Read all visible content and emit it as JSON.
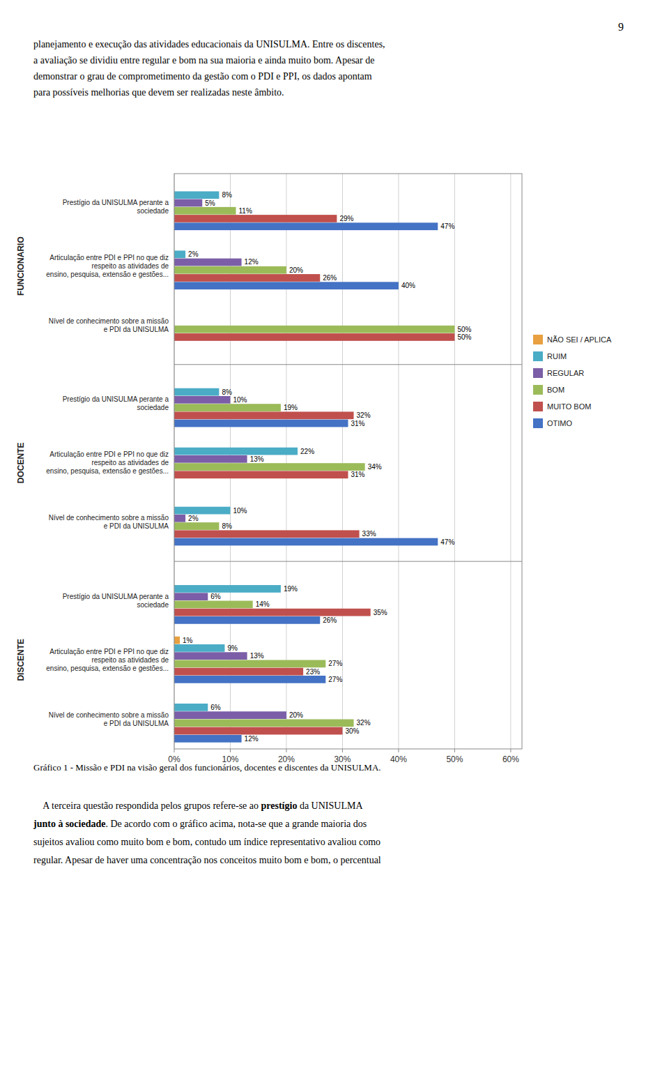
{
  "page_number": "9",
  "header_lines": [
    "planejamento e execução das atividades educacionais da UNISULMA. Entre os discentes,",
    "a avaliação se dividiu entre regular e bom na sua maioria e ainda muito bom. Apesar de",
    "demonstrar o grau de comprometimento da gestão com o PDI e PPI, os dados apontam",
    "para possíveis melhorias que devem ser realizadas neste âmbito."
  ],
  "caption": "Gráfico 1 - Missão e PDI na visão geral dos funcionários, docentes e discentes da UNISULMA.",
  "footer": [
    [
      {
        "text": "    A terceira questão respondida pelos grupos refere-se ao ",
        "bold": false
      },
      {
        "text": "prestígio",
        "bold": true
      },
      {
        "text": " da UNISULMA",
        "bold": false
      }
    ],
    [
      {
        "text": "junto à sociedade",
        "bold": true
      },
      {
        "text": ". De acordo com o gráfico acima, nota-se que a grande maioria dos",
        "bold": false
      }
    ],
    [
      {
        "text": "sujeitos avaliou como muito bom e bom, contudo um índice representativo avaliou como",
        "bold": false
      }
    ],
    [
      {
        "text": "regular. Apesar de haver uma concentração nos conceitos muito bom e bom, o percentual",
        "bold": false
      }
    ]
  ],
  "chart_data": {
    "type": "bar",
    "orientation": "horizontal",
    "categories": [
      "Prestígio da UNISULMA perante a\nsociedade",
      "Articulação entre PDI e PPI no que diz\nrespeito as atividades de\nensino, pesquisa, extensão e gestões...",
      "Nível de conhecimento sobre a missão\ne PDI da UNISULMA",
      "Prestígio da UNISULMA perante a\nsociedade",
      "Articulação entre PDI e PPI no que diz\nrespeito as atividades de\nensino, pesquisa, extensão e gestões...",
      "Nível de conhecimento sobre a missão\ne PDI da UNISULMA",
      "Prestígio da UNISULMA perante a\nsociedade",
      "Articulação entre PDI e PPI no que diz\nrespeito as atividades de\nensino, pesquisa, extensão e gestões...",
      "Nível de conhecimento sobre a missão\ne PDI da UNISULMA"
    ],
    "groups": [
      "FUNCIONARIO",
      "DOCENTE",
      "DISCENTE"
    ],
    "group_spans": [
      [
        0,
        2
      ],
      [
        3,
        5
      ],
      [
        6,
        8
      ]
    ],
    "series": [
      {
        "name": "NÃO SEI / APLICA",
        "color": "#E8A040",
        "values": [
          0,
          0,
          0,
          0,
          0,
          0,
          0,
          1,
          0
        ],
        "value_labels": [
          null,
          null,
          null,
          null,
          null,
          null,
          null,
          "1%",
          null
        ]
      },
      {
        "name": "RUIM",
        "color": "#4BACC6",
        "values": [
          8,
          2,
          0,
          8,
          22,
          10,
          19,
          9,
          6
        ],
        "value_labels": [
          "8%",
          "2%",
          null,
          "8%",
          "22%",
          "10%",
          "19%",
          "9%",
          "6%"
        ]
      },
      {
        "name": "REGULAR",
        "color": "#7B5EA7",
        "values": [
          5,
          12,
          0,
          10,
          13,
          2,
          6,
          13,
          20
        ],
        "value_labels": [
          "5%",
          "12%",
          null,
          "10%",
          "13%",
          "2%",
          "6%",
          "13%",
          "20%"
        ]
      },
      {
        "name": "BOM",
        "color": "#9BBB59",
        "values": [
          11,
          20,
          50,
          19,
          34,
          8,
          14,
          27,
          32
        ],
        "value_labels": [
          "11%",
          "20%",
          "50%",
          "19%",
          "34%",
          "8%",
          "14%",
          "27%",
          "32%"
        ]
      },
      {
        "name": "MUITO BOM",
        "color": "#C0504D",
        "values": [
          29,
          26,
          50,
          32,
          31,
          33,
          35,
          23,
          30
        ],
        "value_labels": [
          "29%",
          "26%",
          "50%",
          "32%",
          "31%",
          "33%",
          "35%",
          "23%",
          "30%"
        ]
      },
      {
        "name": "OTIMO",
        "color": "#4472C4",
        "values": [
          47,
          40,
          0,
          31,
          0,
          47,
          26,
          27,
          12
        ],
        "value_labels": [
          "47%",
          "40%",
          null,
          "31%",
          null,
          "47%",
          "26%",
          "27%",
          "12%"
        ]
      }
    ],
    "xlim": [
      0,
      62
    ],
    "xticks": [
      {
        "value": 0,
        "label": "0%"
      },
      {
        "value": 10,
        "label": "10%"
      },
      {
        "value": 20,
        "label": "20%"
      },
      {
        "value": 30,
        "label": "30%"
      },
      {
        "value": 40,
        "label": "40%"
      },
      {
        "value": 50,
        "label": "50%"
      },
      {
        "value": 60,
        "label": "60%"
      }
    ],
    "grid": true,
    "legend": "right",
    "data_labels": true
  }
}
